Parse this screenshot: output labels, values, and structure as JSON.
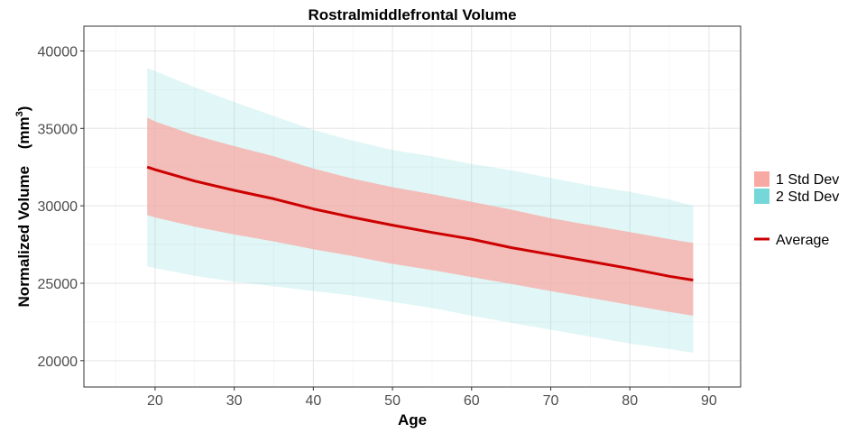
{
  "chart_data": {
    "type": "line",
    "title": "Rostralmiddlefrontal Volume",
    "xlabel": "Age",
    "ylabel": "Normalized Volume",
    "ylabel_unit": "mm",
    "ylabel_unit_exp": "3",
    "xlim": [
      11,
      94
    ],
    "ylim": [
      18300,
      41600
    ],
    "x_ticks": [
      20,
      30,
      40,
      50,
      60,
      70,
      80,
      90
    ],
    "y_ticks": [
      20000,
      25000,
      30000,
      35000,
      40000
    ],
    "grid": true,
    "legend_position": "right",
    "x": [
      19,
      20,
      25,
      30,
      35,
      40,
      45,
      50,
      55,
      60,
      65,
      70,
      75,
      80,
      85,
      88
    ],
    "series": [
      {
        "name": "Average",
        "color": "#cc0000",
        "values": [
          32500,
          32330,
          31600,
          31000,
          30450,
          29800,
          29250,
          28750,
          28280,
          27850,
          27300,
          26850,
          26400,
          25950,
          25450,
          25200
        ]
      },
      {
        "name": "1 Std Dev",
        "color": "#f8a9a4",
        "kind": "band",
        "lower": [
          29400,
          29250,
          28650,
          28150,
          27700,
          27200,
          26750,
          26250,
          25850,
          25400,
          24950,
          24500,
          24050,
          23600,
          23150,
          22900
        ],
        "upper": [
          35700,
          35450,
          34550,
          33850,
          33200,
          32400,
          31750,
          31200,
          30750,
          30250,
          29750,
          29200,
          28750,
          28300,
          27850,
          27600
        ]
      },
      {
        "name": "2 Std Dev",
        "color": "#76d7d8",
        "kind": "band",
        "lower": [
          26100,
          25980,
          25480,
          25100,
          24800,
          24500,
          24200,
          23800,
          23400,
          22900,
          22450,
          22000,
          21550,
          21100,
          20750,
          20500
        ],
        "upper": [
          38900,
          38700,
          37650,
          36700,
          35800,
          34900,
          34200,
          33600,
          33200,
          32700,
          32300,
          31800,
          31300,
          30900,
          30400,
          30000
        ]
      }
    ]
  }
}
